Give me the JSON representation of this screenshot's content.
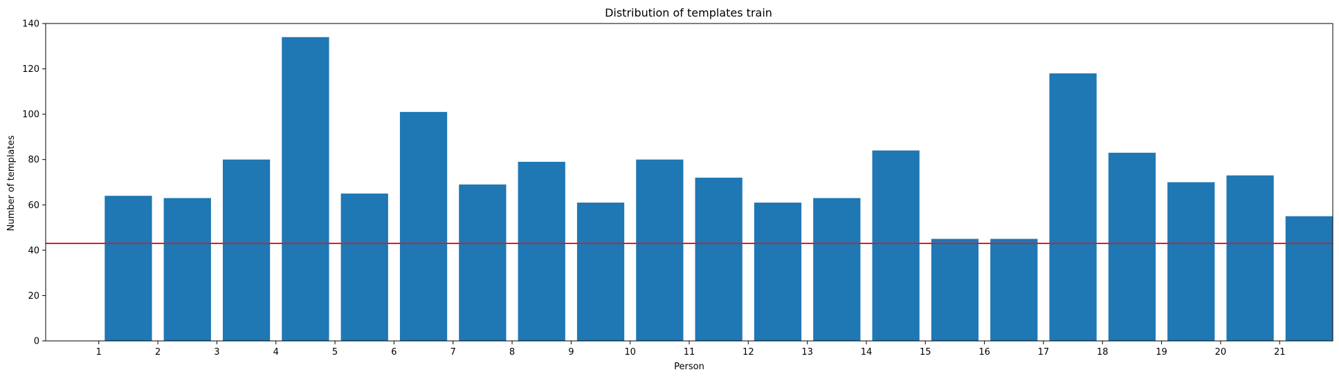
{
  "chart_data": {
    "type": "bar",
    "title": "Distribution of templates train",
    "xlabel": "Person",
    "ylabel": "Number of templates",
    "x_ticks": [
      "1",
      "2",
      "3",
      "4",
      "5",
      "6",
      "7",
      "8",
      "9",
      "10",
      "11",
      "12",
      "13",
      "14",
      "15",
      "16",
      "17",
      "18",
      "19",
      "20",
      "21"
    ],
    "y_ticks": [
      0,
      20,
      40,
      60,
      80,
      100,
      120,
      140
    ],
    "ylim": [
      0,
      140
    ],
    "xlim": [
      0.1,
      21.9
    ],
    "bars": [
      {
        "x_left": 1.1,
        "x_right": 1.9,
        "value": 64
      },
      {
        "x_left": 2.1,
        "x_right": 2.9,
        "value": 63
      },
      {
        "x_left": 3.1,
        "x_right": 3.9,
        "value": 80
      },
      {
        "x_left": 4.1,
        "x_right": 4.9,
        "value": 134
      },
      {
        "x_left": 5.1,
        "x_right": 5.9,
        "value": 65
      },
      {
        "x_left": 6.1,
        "x_right": 6.9,
        "value": 101
      },
      {
        "x_left": 7.1,
        "x_right": 7.9,
        "value": 69
      },
      {
        "x_left": 8.1,
        "x_right": 8.9,
        "value": 79
      },
      {
        "x_left": 9.1,
        "x_right": 9.9,
        "value": 61
      },
      {
        "x_left": 10.1,
        "x_right": 10.9,
        "value": 80
      },
      {
        "x_left": 11.1,
        "x_right": 11.9,
        "value": 72
      },
      {
        "x_left": 12.1,
        "x_right": 12.9,
        "value": 61
      },
      {
        "x_left": 13.1,
        "x_right": 13.9,
        "value": 63
      },
      {
        "x_left": 14.1,
        "x_right": 14.9,
        "value": 84
      },
      {
        "x_left": 15.1,
        "x_right": 15.9,
        "value": 45
      },
      {
        "x_left": 16.1,
        "x_right": 16.9,
        "value": 45
      },
      {
        "x_left": 17.1,
        "x_right": 17.9,
        "value": 118
      },
      {
        "x_left": 18.1,
        "x_right": 18.9,
        "value": 83
      },
      {
        "x_left": 19.1,
        "x_right": 19.9,
        "value": 70
      },
      {
        "x_left": 20.1,
        "x_right": 20.9,
        "value": 73
      },
      {
        "x_left": 21.1,
        "x_right": 21.9,
        "value": 55
      }
    ],
    "reference_line": {
      "y": 43,
      "color": "#e31a1c"
    },
    "bar_color": "#1f77b4",
    "grid": false,
    "legend": "none"
  }
}
